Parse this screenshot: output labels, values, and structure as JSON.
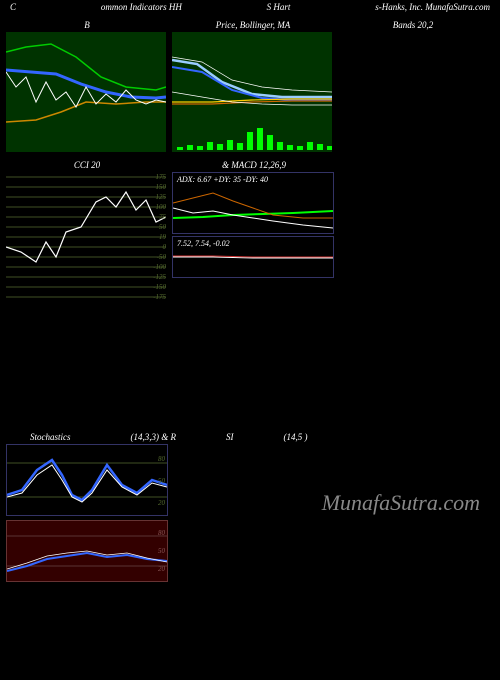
{
  "header": {
    "left": "C",
    "mid1": "ommon Indicators HH",
    "mid2": "S Hart",
    "right": "s-Hanks, Inc. MunafaSutra.com"
  },
  "watermark": "MunafaSutra.com",
  "panels": {
    "bbands_left": {
      "title": "B",
      "bg": "#003300",
      "width": 160,
      "height": 120,
      "lines": [
        {
          "color": "#00cc00",
          "w": 1.5,
          "pts": [
            [
              0,
              20
            ],
            [
              20,
              15
            ],
            [
              45,
              12
            ],
            [
              70,
              25
            ],
            [
              95,
              45
            ],
            [
              120,
              55
            ],
            [
              150,
              58
            ],
            [
              160,
              55
            ]
          ]
        },
        {
          "color": "#3366ff",
          "w": 3,
          "pts": [
            [
              0,
              38
            ],
            [
              25,
              40
            ],
            [
              50,
              42
            ],
            [
              75,
              52
            ],
            [
              100,
              60
            ],
            [
              125,
              65
            ],
            [
              150,
              66
            ],
            [
              160,
              65
            ]
          ]
        },
        {
          "color": "#cc8800",
          "w": 1.5,
          "pts": [
            [
              0,
              90
            ],
            [
              30,
              88
            ],
            [
              55,
              80
            ],
            [
              80,
              70
            ],
            [
              110,
              72
            ],
            [
              140,
              70
            ],
            [
              160,
              70
            ]
          ]
        },
        {
          "color": "#ffffff",
          "w": 1,
          "pts": [
            [
              0,
              40
            ],
            [
              10,
              55
            ],
            [
              20,
              45
            ],
            [
              30,
              70
            ],
            [
              40,
              50
            ],
            [
              50,
              68
            ],
            [
              60,
              60
            ],
            [
              70,
              75
            ],
            [
              80,
              55
            ],
            [
              90,
              72
            ],
            [
              100,
              62
            ],
            [
              110,
              70
            ],
            [
              120,
              58
            ],
            [
              130,
              68
            ],
            [
              140,
              72
            ],
            [
              150,
              68
            ],
            [
              160,
              70
            ]
          ]
        }
      ]
    },
    "bbands_mid": {
      "title": "Price, Bollinger, MA",
      "title_right": "Bands 20,2",
      "bg": "#003300",
      "width": 160,
      "height": 120,
      "lines": [
        {
          "color": "#ffffff",
          "w": 0.7,
          "pts": [
            [
              0,
              25
            ],
            [
              30,
              30
            ],
            [
              60,
              48
            ],
            [
              90,
              55
            ],
            [
              120,
              58
            ],
            [
              160,
              60
            ]
          ]
        },
        {
          "color": "#99ccff",
          "w": 2.5,
          "pts": [
            [
              0,
              28
            ],
            [
              25,
              32
            ],
            [
              50,
              50
            ],
            [
              80,
              62
            ],
            [
              110,
              65
            ],
            [
              140,
              65
            ],
            [
              160,
              65
            ]
          ]
        },
        {
          "color": "#3366ff",
          "w": 2,
          "pts": [
            [
              0,
              35
            ],
            [
              30,
              40
            ],
            [
              60,
              58
            ],
            [
              90,
              66
            ],
            [
              120,
              68
            ],
            [
              160,
              68
            ]
          ]
        },
        {
          "color": "#ffcc00",
          "w": 1.2,
          "pts": [
            [
              0,
              70
            ],
            [
              40,
              70
            ],
            [
              80,
              68
            ],
            [
              120,
              67
            ],
            [
              160,
              67
            ]
          ]
        },
        {
          "color": "#cc6600",
          "w": 1.2,
          "pts": [
            [
              0,
              72
            ],
            [
              40,
              72
            ],
            [
              80,
              70
            ],
            [
              120,
              69
            ],
            [
              160,
              69
            ]
          ]
        },
        {
          "color": "#ffffff",
          "w": 0.7,
          "pts": [
            [
              0,
              60
            ],
            [
              30,
              65
            ],
            [
              60,
              70
            ],
            [
              90,
              72
            ],
            [
              120,
              73
            ],
            [
              160,
              73
            ]
          ]
        }
      ],
      "volume_bars": {
        "color": "#00ff00",
        "baseline": 118,
        "bars": [
          [
            5,
            3
          ],
          [
            15,
            5
          ],
          [
            25,
            4
          ],
          [
            35,
            8
          ],
          [
            45,
            6
          ],
          [
            55,
            10
          ],
          [
            65,
            7
          ],
          [
            75,
            18
          ],
          [
            85,
            22
          ],
          [
            95,
            15
          ],
          [
            105,
            8
          ],
          [
            115,
            5
          ],
          [
            125,
            4
          ],
          [
            135,
            8
          ],
          [
            145,
            6
          ],
          [
            155,
            4
          ]
        ]
      }
    },
    "cci": {
      "title": "CCI 20",
      "bg": "#000000",
      "width": 160,
      "height": 130,
      "grid_color": "#556b2f",
      "ticks": [
        175,
        150,
        125,
        100,
        75,
        50,
        19,
        0,
        -50,
        -100,
        -125,
        -150,
        -175
      ],
      "line": {
        "color": "#ffffff",
        "w": 1.2,
        "pts": [
          [
            0,
            75
          ],
          [
            15,
            80
          ],
          [
            30,
            90
          ],
          [
            40,
            70
          ],
          [
            50,
            85
          ],
          [
            60,
            60
          ],
          [
            75,
            55
          ],
          [
            90,
            30
          ],
          [
            100,
            25
          ],
          [
            110,
            35
          ],
          [
            120,
            20
          ],
          [
            130,
            38
          ],
          [
            140,
            28
          ],
          [
            150,
            50
          ],
          [
            160,
            45
          ]
        ]
      }
    },
    "adx": {
      "label": "ADX: 6.67 +DY: 35 -DY: 40",
      "bg": "#000000",
      "width": 160,
      "height": 60,
      "border": "#333366",
      "lines": [
        {
          "color": "#00ff00",
          "w": 2,
          "pts": [
            [
              0,
              45
            ],
            [
              30,
              44
            ],
            [
              60,
              42
            ],
            [
              90,
              41
            ],
            [
              120,
              40
            ],
            [
              160,
              38
            ]
          ]
        },
        {
          "color": "#cc6600",
          "w": 1,
          "pts": [
            [
              0,
              30
            ],
            [
              20,
              25
            ],
            [
              40,
              20
            ],
            [
              60,
              28
            ],
            [
              80,
              35
            ],
            [
              100,
              42
            ],
            [
              130,
              45
            ],
            [
              160,
              45
            ]
          ]
        },
        {
          "color": "#ffffff",
          "w": 1,
          "pts": [
            [
              0,
              35
            ],
            [
              20,
              40
            ],
            [
              40,
              38
            ],
            [
              60,
              42
            ],
            [
              80,
              45
            ],
            [
              100,
              48
            ],
            [
              130,
              52
            ],
            [
              160,
              55
            ]
          ]
        }
      ]
    },
    "macd": {
      "label": "7.52, 7.54, -0.02",
      "title_suffix": "& MACD 12,26,9",
      "bg": "#000000",
      "width": 160,
      "height": 40,
      "border": "#333366",
      "lines": [
        {
          "color": "#ffffff",
          "w": 1,
          "pts": [
            [
              0,
              20
            ],
            [
              40,
              20
            ],
            [
              80,
              21
            ],
            [
              120,
              21
            ],
            [
              160,
              21
            ]
          ]
        },
        {
          "color": "#cc3333",
          "w": 1,
          "pts": [
            [
              0,
              19
            ],
            [
              40,
              19
            ],
            [
              80,
              20
            ],
            [
              120,
              20
            ],
            [
              160,
              20
            ]
          ]
        }
      ]
    },
    "stoch": {
      "title_left": "Stochastics",
      "title_mid": "(14,3,3) & R",
      "title_mid2": "SI",
      "title_right": "(14,5                          )",
      "bg": "#000000",
      "width": 160,
      "height": 70,
      "border": "#333366",
      "hlines": [
        {
          "y": 18,
          "color": "#556b2f"
        },
        {
          "y": 52,
          "color": "#556b2f"
        }
      ],
      "ticks": [
        80,
        50,
        20
      ],
      "lines": [
        {
          "color": "#3366ff",
          "w": 2.5,
          "pts": [
            [
              0,
              50
            ],
            [
              15,
              45
            ],
            [
              30,
              25
            ],
            [
              45,
              15
            ],
            [
              55,
              30
            ],
            [
              65,
              50
            ],
            [
              75,
              55
            ],
            [
              85,
              45
            ],
            [
              100,
              20
            ],
            [
              115,
              40
            ],
            [
              130,
              48
            ],
            [
              145,
              35
            ],
            [
              160,
              40
            ]
          ]
        },
        {
          "color": "#ffffff",
          "w": 1,
          "pts": [
            [
              0,
              52
            ],
            [
              15,
              48
            ],
            [
              30,
              30
            ],
            [
              45,
              20
            ],
            [
              55,
              35
            ],
            [
              65,
              52
            ],
            [
              75,
              57
            ],
            [
              85,
              48
            ],
            [
              100,
              25
            ],
            [
              115,
              42
            ],
            [
              130,
              50
            ],
            [
              145,
              38
            ],
            [
              160,
              42
            ]
          ]
        }
      ]
    },
    "rsi": {
      "bg": "#330000",
      "width": 160,
      "height": 60,
      "border": "#663333",
      "hlines": [
        {
          "y": 15,
          "color": "#664444"
        },
        {
          "y": 45,
          "color": "#664444"
        }
      ],
      "ticks": [
        80,
        50,
        20
      ],
      "lines": [
        {
          "color": "#3366ff",
          "w": 2,
          "pts": [
            [
              0,
              50
            ],
            [
              20,
              45
            ],
            [
              40,
              38
            ],
            [
              60,
              35
            ],
            [
              80,
              32
            ],
            [
              100,
              36
            ],
            [
              120,
              34
            ],
            [
              140,
              38
            ],
            [
              160,
              40
            ]
          ]
        },
        {
          "color": "#ffffff",
          "w": 0.8,
          "pts": [
            [
              0,
              48
            ],
            [
              20,
              42
            ],
            [
              40,
              35
            ],
            [
              60,
              32
            ],
            [
              80,
              30
            ],
            [
              100,
              34
            ],
            [
              120,
              32
            ],
            [
              140,
              37
            ],
            [
              160,
              41
            ]
          ]
        }
      ]
    }
  }
}
